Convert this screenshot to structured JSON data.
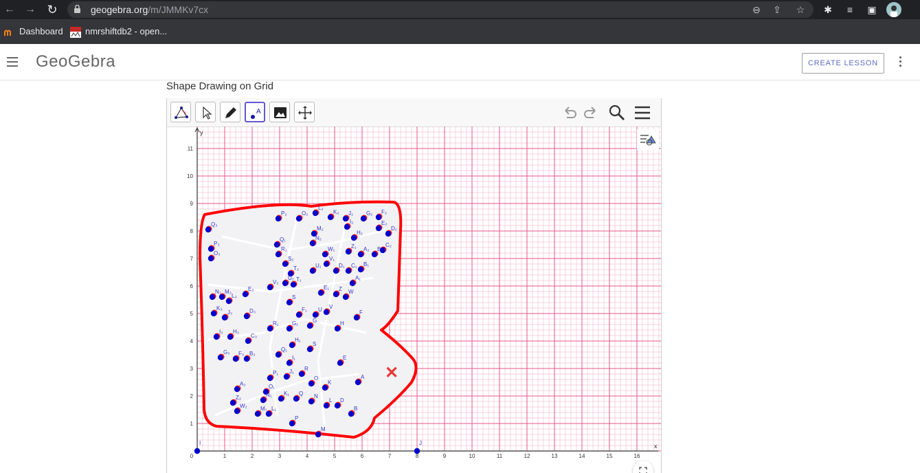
{
  "browser": {
    "url_host": "geogebra.org",
    "url_path": "/m/JMMKv7cx",
    "bookmarks": [
      {
        "label": "Dashboard",
        "icon": "moodle-icon"
      },
      {
        "label": "nmrshiftdb2 - open...",
        "icon": "nmr-icon"
      }
    ]
  },
  "header": {
    "logo": "GeoGebra",
    "create_lesson": "CREATE LESSON"
  },
  "page": {
    "title": "Shape Drawing on Grid"
  },
  "graph": {
    "x_ticks": [
      "0",
      "1",
      "2",
      "3",
      "4",
      "5",
      "6",
      "7",
      "8",
      "9",
      "10",
      "11",
      "12",
      "13",
      "14",
      "15",
      "16"
    ],
    "y_ticks": [
      "1",
      "2",
      "3",
      "4",
      "5",
      "6",
      "7",
      "8",
      "9",
      "10",
      "11"
    ],
    "x_label": "x",
    "y_label": "y",
    "colors": {
      "grid_major": "#e8558b",
      "grid_minor": "#f7c1d3",
      "outline": "#ff0000",
      "point": "#0000cc"
    },
    "anchor_points": [
      {
        "label": "I",
        "x": 0,
        "y": 0
      },
      {
        "label": "J",
        "x": 8,
        "y": 0
      }
    ],
    "points": [
      {
        "label": "Q₃",
        "x": 0.4,
        "y": 8.05
      },
      {
        "label": "P₃",
        "x": 0.5,
        "y": 7.35
      },
      {
        "label": "O₃",
        "x": 0.5,
        "y": 7.0
      },
      {
        "label": "P₂",
        "x": 2.95,
        "y": 8.45
      },
      {
        "label": "O₂",
        "x": 3.7,
        "y": 8.45
      },
      {
        "label": "L₂",
        "x": 4.3,
        "y": 8.65
      },
      {
        "label": "K₂",
        "x": 4.85,
        "y": 8.5
      },
      {
        "label": "J₂",
        "x": 5.4,
        "y": 8.45
      },
      {
        "label": "G₂",
        "x": 6.05,
        "y": 8.45
      },
      {
        "label": "F₂",
        "x": 6.6,
        "y": 8.5
      },
      {
        "label": "I₂",
        "x": 5.45,
        "y": 8.15
      },
      {
        "label": "E₂",
        "x": 6.6,
        "y": 8.1
      },
      {
        "label": "D₂",
        "x": 6.95,
        "y": 7.9
      },
      {
        "label": "M₂",
        "x": 4.25,
        "y": 7.9
      },
      {
        "label": "N₂",
        "x": 4.2,
        "y": 7.55
      },
      {
        "label": "H₂",
        "x": 5.7,
        "y": 7.75
      },
      {
        "label": "C₂",
        "x": 6.75,
        "y": 7.3
      },
      {
        "label": "Q₁",
        "x": 2.9,
        "y": 7.5
      },
      {
        "label": "R₂",
        "x": 2.95,
        "y": 7.15
      },
      {
        "label": "W₁",
        "x": 4.65,
        "y": 7.15
      },
      {
        "label": "Z₁",
        "x": 5.5,
        "y": 7.25
      },
      {
        "label": "A₂",
        "x": 5.95,
        "y": 7.15
      },
      {
        "label": "B₂",
        "x": 6.45,
        "y": 7.15
      },
      {
        "label": "S₂",
        "x": 3.2,
        "y": 6.8
      },
      {
        "label": "U₁",
        "x": 4.2,
        "y": 6.55
      },
      {
        "label": "V₁",
        "x": 4.7,
        "y": 6.8
      },
      {
        "label": "C₁",
        "x": 5.5,
        "y": 6.55
      },
      {
        "label": "B₁",
        "x": 5.95,
        "y": 6.6
      },
      {
        "label": "T₂",
        "x": 3.4,
        "y": 6.45
      },
      {
        "label": "D₁",
        "x": 5.05,
        "y": 6.55
      },
      {
        "label": "A₁",
        "x": 5.65,
        "y": 6.1
      },
      {
        "label": "U₂",
        "x": 3.2,
        "y": 6.1
      },
      {
        "label": "T₁",
        "x": 3.5,
        "y": 6.05
      },
      {
        "label": "V₂",
        "x": 2.65,
        "y": 5.95
      },
      {
        "label": "E₁",
        "x": 4.5,
        "y": 5.75
      },
      {
        "label": "Z",
        "x": 5.05,
        "y": 5.7
      },
      {
        "label": "W",
        "x": 5.4,
        "y": 5.6
      },
      {
        "label": "E₃",
        "x": 1.75,
        "y": 5.7
      },
      {
        "label": "N₃",
        "x": 0.55,
        "y": 5.6
      },
      {
        "label": "M₃",
        "x": 0.9,
        "y": 5.6
      },
      {
        "label": "L₃",
        "x": 1.15,
        "y": 5.45
      },
      {
        "label": "S",
        "x": 3.35,
        "y": 5.4
      },
      {
        "label": "F₁",
        "x": 3.7,
        "y": 4.95
      },
      {
        "label": "U",
        "x": 4.3,
        "y": 4.95
      },
      {
        "label": "V",
        "x": 4.7,
        "y": 5.05
      },
      {
        "label": "K₃",
        "x": 0.6,
        "y": 5.0
      },
      {
        "label": "J₃",
        "x": 1.0,
        "y": 4.85
      },
      {
        "label": "D₃",
        "x": 1.8,
        "y": 4.9
      },
      {
        "label": "F",
        "x": 5.8,
        "y": 4.85
      },
      {
        "label": "R₁",
        "x": 2.65,
        "y": 4.45
      },
      {
        "label": "G₁",
        "x": 3.35,
        "y": 4.45
      },
      {
        "label": "H",
        "x": 5.1,
        "y": 4.45
      },
      {
        "label": "G",
        "x": 4.1,
        "y": 4.55
      },
      {
        "label": "I₃",
        "x": 0.7,
        "y": 4.15
      },
      {
        "label": "H₃",
        "x": 1.2,
        "y": 4.15
      },
      {
        "label": "C₃",
        "x": 1.85,
        "y": 4.0
      },
      {
        "label": "H₁",
        "x": 3.45,
        "y": 3.85
      },
      {
        "label": "S",
        "x": 4.1,
        "y": 3.7
      },
      {
        "label": "G₃",
        "x": 0.85,
        "y": 3.4
      },
      {
        "label": "F₃",
        "x": 1.4,
        "y": 3.35
      },
      {
        "label": "B₃",
        "x": 1.8,
        "y": 3.35
      },
      {
        "label": "Q₁",
        "x": 2.95,
        "y": 3.5
      },
      {
        "label": "I₁",
        "x": 3.35,
        "y": 3.2
      },
      {
        "label": "E",
        "x": 5.2,
        "y": 3.2
      },
      {
        "label": "P₁",
        "x": 2.65,
        "y": 2.65
      },
      {
        "label": "J₁",
        "x": 3.25,
        "y": 2.7
      },
      {
        "label": "R",
        "x": 3.8,
        "y": 2.8
      },
      {
        "label": "O",
        "x": 4.15,
        "y": 2.45
      },
      {
        "label": "K",
        "x": 4.65,
        "y": 2.3
      },
      {
        "label": "A",
        "x": 5.85,
        "y": 2.5
      },
      {
        "label": "A₃",
        "x": 1.45,
        "y": 2.25
      },
      {
        "label": "O₁",
        "x": 2.5,
        "y": 2.15
      },
      {
        "label": "N₁",
        "x": 2.4,
        "y": 1.85
      },
      {
        "label": "K₁",
        "x": 3.05,
        "y": 1.9
      },
      {
        "label": "Q",
        "x": 3.6,
        "y": 1.9
      },
      {
        "label": "N",
        "x": 4.15,
        "y": 1.8
      },
      {
        "label": "L",
        "x": 4.7,
        "y": 1.65
      },
      {
        "label": "D",
        "x": 5.1,
        "y": 1.65
      },
      {
        "label": "Z₂",
        "x": 1.3,
        "y": 1.75
      },
      {
        "label": "W₂",
        "x": 1.45,
        "y": 1.45
      },
      {
        "label": "M₁",
        "x": 2.2,
        "y": 1.35
      },
      {
        "label": "L₁",
        "x": 2.6,
        "y": 1.35
      },
      {
        "label": "B",
        "x": 5.6,
        "y": 1.35
      },
      {
        "label": "P",
        "x": 3.45,
        "y": 1.0
      },
      {
        "label": "M",
        "x": 4.4,
        "y": 0.6
      }
    ],
    "eraser_mark": "✕"
  }
}
